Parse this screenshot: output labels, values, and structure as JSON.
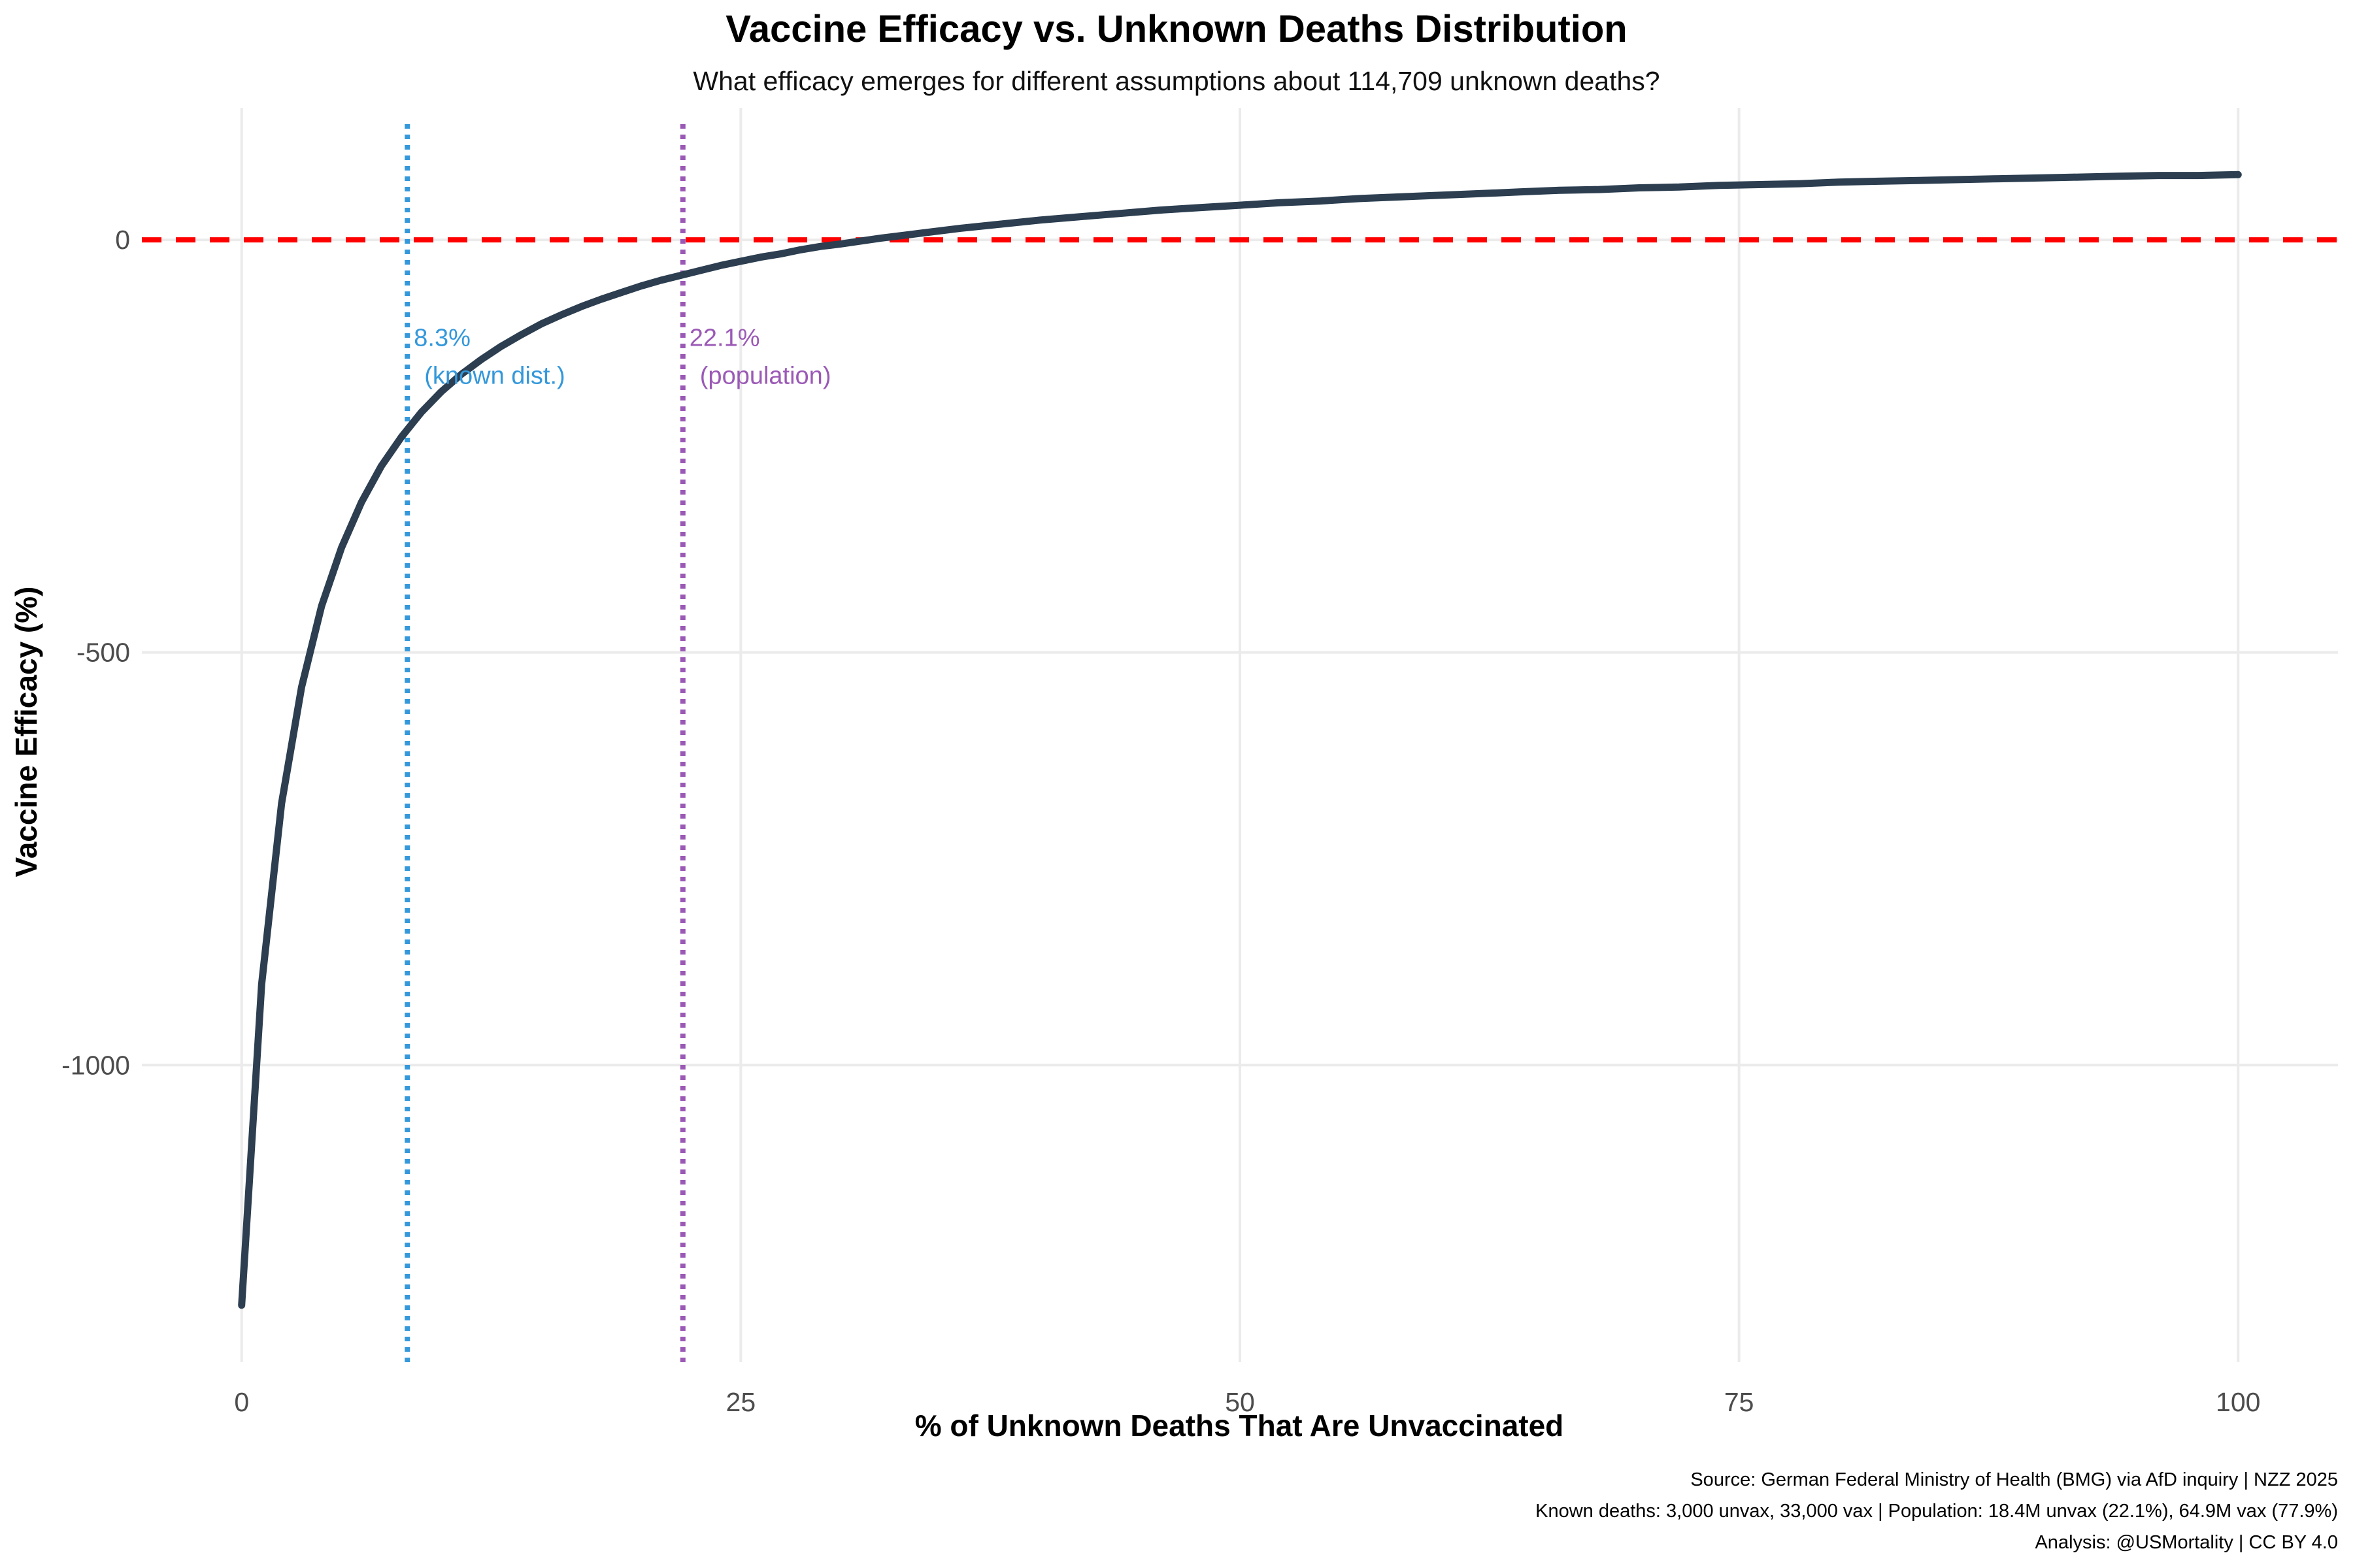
{
  "chart_data": {
    "type": "line",
    "title": "Vaccine Efficacy vs. Unknown Deaths Distribution",
    "subtitle": "What efficacy emerges for different assumptions about 114,709 unknown deaths?",
    "xlabel": "% of Unknown Deaths That Are Unvaccinated",
    "ylabel": "Vaccine Efficacy (%)",
    "xlim": [
      -5,
      105
    ],
    "ylim": [
      -1360,
      160
    ],
    "x_ticks": [
      0,
      25,
      50,
      75,
      100
    ],
    "x_tick_labels": [
      "0",
      "25",
      "50",
      "75",
      "100"
    ],
    "y_ticks": [
      0,
      -500,
      -1000
    ],
    "y_tick_labels": [
      "0",
      "-500",
      "-1000"
    ],
    "grid": true,
    "series": [
      {
        "color": "#2c3e50",
        "x": [
          0,
          1,
          2,
          3,
          4,
          5,
          6,
          7,
          8,
          9,
          10,
          11,
          12,
          13,
          14,
          15,
          16,
          17,
          18,
          19,
          20,
          21,
          22,
          23,
          24,
          25,
          26,
          27,
          28,
          29,
          30,
          32,
          34,
          36,
          38,
          40,
          42,
          44,
          46,
          48,
          50,
          52,
          54,
          56,
          58,
          60,
          62,
          64,
          66,
          68,
          70,
          72,
          74,
          76,
          78,
          80,
          82,
          84,
          86,
          88,
          90,
          92,
          94,
          96,
          98,
          100
        ],
        "y": [
          -1291,
          -902,
          -683,
          -542,
          -444,
          -373,
          -318,
          -274,
          -239,
          -209,
          -184,
          -163,
          -145,
          -129,
          -115,
          -102,
          -91,
          -81,
          -72,
          -64,
          -56,
          -49,
          -43,
          -37,
          -31,
          -26,
          -21,
          -17,
          -12,
          -8,
          -5,
          2,
          8,
          14,
          19,
          24,
          28,
          32,
          36,
          39,
          42,
          45,
          47,
          50,
          52,
          54,
          56,
          58,
          60,
          61,
          63,
          64,
          66,
          67,
          68,
          70,
          71,
          72,
          73,
          74,
          75,
          76,
          77,
          78,
          78,
          79
        ]
      }
    ],
    "reference_lines": [
      {
        "orientation": "horizontal",
        "y": 0,
        "color": "#ff0000",
        "style": "dashed"
      },
      {
        "orientation": "vertical",
        "x": 8.3,
        "color": "#3498db",
        "style": "dotted",
        "label_line1": "8.3%",
        "label_line2": "(known dist.)"
      },
      {
        "orientation": "vertical",
        "x": 22.1,
        "color": "#9b59b6",
        "style": "dotted",
        "label_line1": "22.1%",
        "label_line2": "(population)"
      }
    ],
    "annotation_y": -130,
    "caption": [
      "Source: German Federal Ministry of Health (BMG) via AfD inquiry | NZZ 2025",
      "Known deaths: 3,000 unvax, 33,000 vax | Population: 18.4M unvax (22.1%), 64.9M vax (77.9%)",
      "Analysis: @USMortality | CC BY 4.0"
    ]
  }
}
